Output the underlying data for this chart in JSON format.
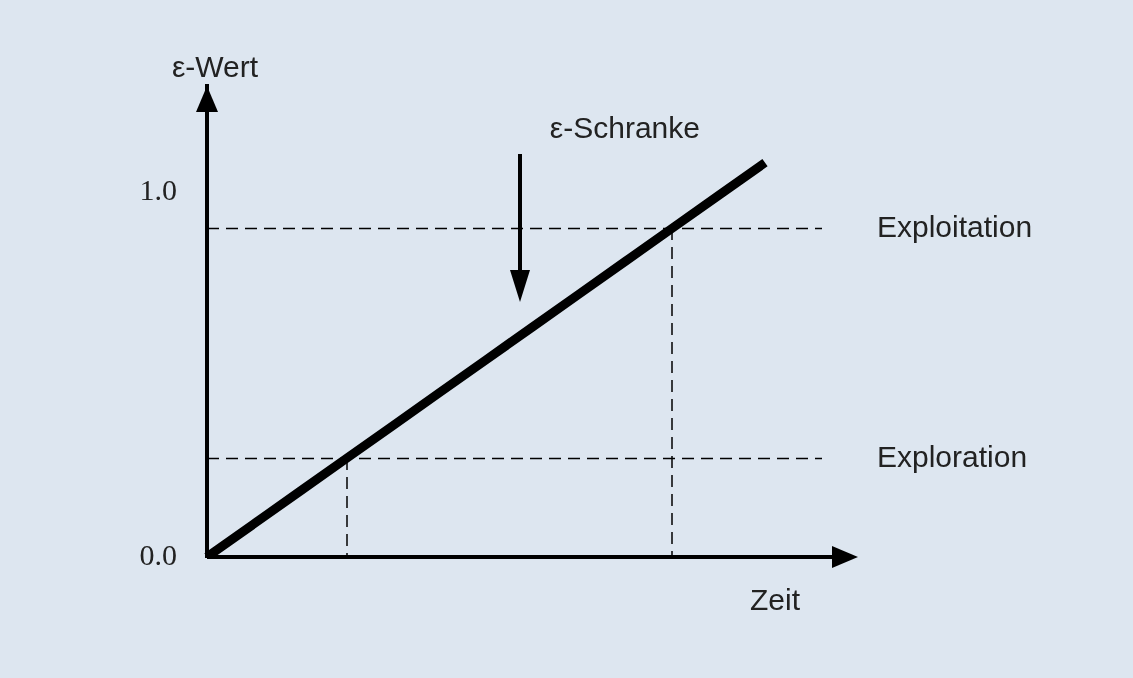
{
  "chart_data": {
    "type": "line",
    "ylabel": "ε-Wert",
    "xlabel": "Zeit",
    "categories": [
      null,
      null,
      null,
      null,
      null,
      null,
      null,
      null,
      null,
      null,
      null,
      null,
      null
    ],
    "series": [
      {
        "color": "#000000",
        "values": [
          0,
          0.09,
          0.18,
          0.27,
          0.36,
          0.45,
          0.54,
          0.63,
          0.72,
          0.81,
          0.9,
          0.99,
          1.08
        ]
      }
    ],
    "ylim": [
      0,
      1.29
    ],
    "yticks": [
      {
        "value": 0,
        "label": "0.0"
      },
      {
        "value": 1,
        "label": "1.0"
      }
    ],
    "tick_labels": "y",
    "grid": false,
    "legend": false,
    "marker": "none",
    "line_style": "solid",
    "ref_lines": [
      {
        "axis": "y",
        "value": 0.27,
        "label": "Exploration",
        "line_style": "dashed",
        "color": "#000000"
      },
      {
        "axis": "y",
        "value": 0.9,
        "label": "Exploitation",
        "line_style": "dashed",
        "color": "#000000"
      }
    ],
    "annotations": [
      "ε-Schranke"
    ]
  }
}
